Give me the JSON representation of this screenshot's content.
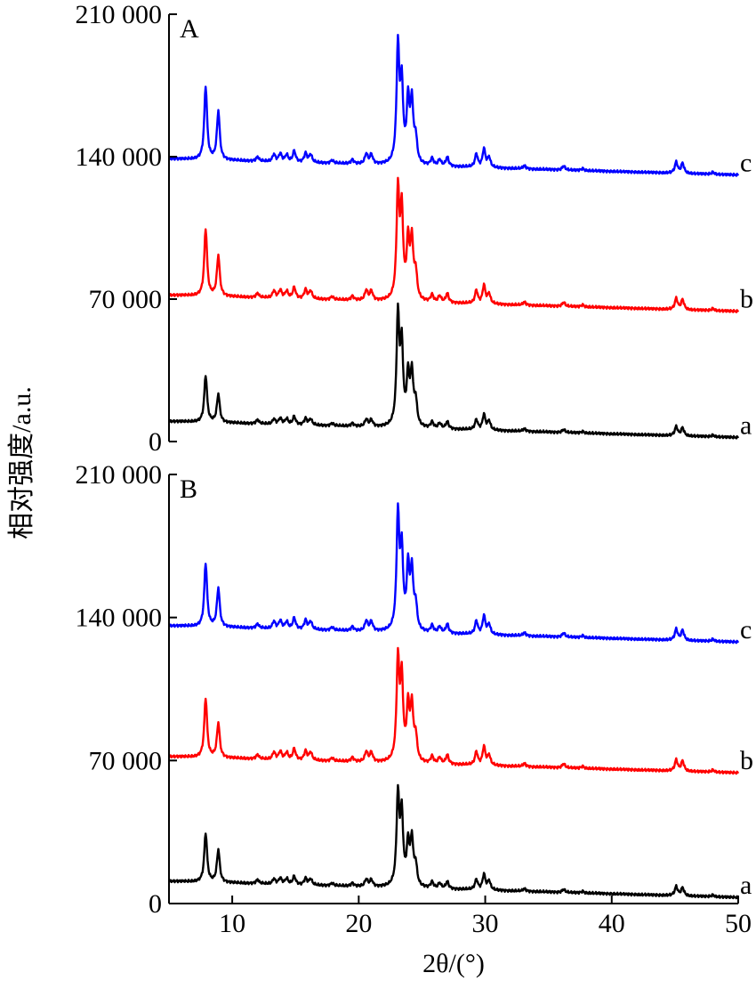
{
  "chart_data": [
    {
      "type": "line",
      "panel_label": "A",
      "ylabel": "相对强度/a.u.",
      "ylim": [
        0,
        210000
      ],
      "y_ticks": [
        0,
        70000,
        140000,
        210000
      ],
      "y_tick_labels": [
        "0",
        "70 000",
        "140 000",
        "210 000"
      ],
      "xlim": [
        5,
        50
      ],
      "series": [
        {
          "name": "a",
          "color": "#000000",
          "baseline": 10000,
          "offset": 0,
          "peaks": [
            [
              7.9,
              23000
            ],
            [
              8.9,
              14000
            ],
            [
              12.0,
              1800
            ],
            [
              13.3,
              2500
            ],
            [
              13.8,
              3000
            ],
            [
              14.3,
              2800
            ],
            [
              14.9,
              4000
            ],
            [
              15.8,
              3200
            ],
            [
              16.2,
              3000
            ],
            [
              17.9,
              1200
            ],
            [
              19.5,
              1500
            ],
            [
              20.6,
              3500
            ],
            [
              21.0,
              3200
            ],
            [
              23.1,
              54000
            ],
            [
              23.4,
              38000
            ],
            [
              23.9,
              24000
            ],
            [
              24.2,
              25000
            ],
            [
              24.5,
              12000
            ],
            [
              25.8,
              3000
            ],
            [
              26.4,
              2500
            ],
            [
              27.0,
              3500
            ],
            [
              29.3,
              5000
            ],
            [
              29.9,
              7500
            ],
            [
              30.3,
              4500
            ],
            [
              33.1,
              1200
            ],
            [
              36.2,
              1500
            ],
            [
              37.7,
              800
            ],
            [
              45.1,
              4500
            ],
            [
              45.6,
              4000
            ],
            [
              48.0,
              800
            ]
          ],
          "series_label": "a"
        },
        {
          "name": "b",
          "color": "#ff0000",
          "baseline": 72000,
          "offset": 0,
          "peaks": [
            [
              7.9,
              33000
            ],
            [
              8.9,
              20000
            ],
            [
              12.0,
              2000
            ],
            [
              13.3,
              3500
            ],
            [
              13.8,
              4000
            ],
            [
              14.3,
              3500
            ],
            [
              14.9,
              5500
            ],
            [
              15.8,
              4500
            ],
            [
              16.2,
              4000
            ],
            [
              17.9,
              1500
            ],
            [
              19.5,
              2000
            ],
            [
              20.6,
              5000
            ],
            [
              21.0,
              4500
            ],
            [
              23.1,
              53000
            ],
            [
              23.4,
              42000
            ],
            [
              23.9,
              28000
            ],
            [
              24.2,
              28000
            ],
            [
              24.5,
              13000
            ],
            [
              25.8,
              3500
            ],
            [
              26.4,
              3000
            ],
            [
              27.0,
              4500
            ],
            [
              29.3,
              6500
            ],
            [
              29.9,
              9000
            ],
            [
              30.3,
              5000
            ],
            [
              33.1,
              1500
            ],
            [
              36.2,
              2000
            ],
            [
              37.7,
              1000
            ],
            [
              45.1,
              5500
            ],
            [
              45.6,
              5000
            ],
            [
              48.0,
              1000
            ]
          ],
          "series_label": "b"
        },
        {
          "name": "c",
          "color": "#0000ff",
          "baseline": 139000,
          "offset": 0,
          "peaks": [
            [
              7.9,
              36000
            ],
            [
              8.9,
              24000
            ],
            [
              12.0,
              2000
            ],
            [
              13.3,
              3500
            ],
            [
              13.8,
              4000
            ],
            [
              14.3,
              3500
            ],
            [
              14.9,
              5500
            ],
            [
              15.8,
              4500
            ],
            [
              16.2,
              4000
            ],
            [
              17.9,
              1500
            ],
            [
              19.5,
              2000
            ],
            [
              20.6,
              5000
            ],
            [
              21.0,
              4500
            ],
            [
              23.1,
              57000
            ],
            [
              23.4,
              37000
            ],
            [
              23.9,
              30000
            ],
            [
              24.2,
              29000
            ],
            [
              24.5,
              12000
            ],
            [
              25.8,
              3500
            ],
            [
              26.4,
              3000
            ],
            [
              27.0,
              4500
            ],
            [
              29.3,
              6500
            ],
            [
              29.9,
              9000
            ],
            [
              30.3,
              5000
            ],
            [
              33.1,
              1500
            ],
            [
              36.2,
              2000
            ],
            [
              37.7,
              1000
            ],
            [
              45.1,
              5500
            ],
            [
              45.6,
              5000
            ],
            [
              48.0,
              1000
            ]
          ],
          "series_label": "c"
        }
      ]
    },
    {
      "type": "line",
      "panel_label": "B",
      "ylim": [
        0,
        210000
      ],
      "y_ticks": [
        0,
        70000,
        140000,
        210000
      ],
      "y_tick_labels": [
        "0",
        "70 000",
        "140 000",
        "210 000"
      ],
      "xlim": [
        5,
        50
      ],
      "x_ticks": [
        10,
        20,
        30,
        40,
        50
      ],
      "x_tick_labels": [
        "10",
        "20",
        "30",
        "40",
        "50"
      ],
      "xlabel": "2θ/(°)",
      "series": [
        {
          "name": "a",
          "color": "#000000",
          "baseline": 11000,
          "peaks": [
            [
              7.9,
              24000
            ],
            [
              8.9,
              16000
            ],
            [
              12.0,
              1800
            ],
            [
              13.3,
              2500
            ],
            [
              13.8,
              3000
            ],
            [
              14.3,
              2800
            ],
            [
              14.9,
              4000
            ],
            [
              15.8,
              3200
            ],
            [
              16.2,
              3000
            ],
            [
              17.9,
              1200
            ],
            [
              19.5,
              1500
            ],
            [
              20.6,
              3500
            ],
            [
              21.0,
              3200
            ],
            [
              23.1,
              44000
            ],
            [
              23.4,
              34000
            ],
            [
              23.9,
              20000
            ],
            [
              24.2,
              22000
            ],
            [
              24.5,
              10000
            ],
            [
              25.8,
              3000
            ],
            [
              26.4,
              2500
            ],
            [
              27.0,
              3500
            ],
            [
              29.3,
              5000
            ],
            [
              29.9,
              7500
            ],
            [
              30.3,
              4500
            ],
            [
              33.1,
              1200
            ],
            [
              36.2,
              1500
            ],
            [
              37.7,
              800
            ],
            [
              45.1,
              4500
            ],
            [
              45.6,
              4000
            ],
            [
              48.0,
              800
            ]
          ],
          "series_label": "a"
        },
        {
          "name": "b",
          "color": "#ff0000",
          "baseline": 72000,
          "peaks": [
            [
              7.9,
              29000
            ],
            [
              8.9,
              17000
            ],
            [
              12.0,
              2000
            ],
            [
              13.3,
              3500
            ],
            [
              13.8,
              4000
            ],
            [
              14.3,
              3500
            ],
            [
              14.9,
              5500
            ],
            [
              15.8,
              4500
            ],
            [
              16.2,
              4000
            ],
            [
              17.9,
              1500
            ],
            [
              19.5,
              2000
            ],
            [
              20.6,
              5000
            ],
            [
              21.0,
              4500
            ],
            [
              23.1,
              49000
            ],
            [
              23.4,
              39000
            ],
            [
              23.9,
              26000
            ],
            [
              24.2,
              26000
            ],
            [
              24.5,
              12000
            ],
            [
              25.8,
              3500
            ],
            [
              26.4,
              3000
            ],
            [
              27.0,
              4500
            ],
            [
              29.3,
              6500
            ],
            [
              29.9,
              9000
            ],
            [
              30.3,
              5000
            ],
            [
              33.1,
              1500
            ],
            [
              36.2,
              2000
            ],
            [
              37.7,
              1000
            ],
            [
              45.1,
              5500
            ],
            [
              45.6,
              5000
            ],
            [
              48.0,
              1000
            ]
          ],
          "series_label": "b"
        },
        {
          "name": "c",
          "color": "#0000ff",
          "baseline": 136000,
          "peaks": [
            [
              7.9,
              31000
            ],
            [
              8.9,
              19000
            ],
            [
              12.0,
              2000
            ],
            [
              13.3,
              3500
            ],
            [
              13.8,
              4000
            ],
            [
              14.3,
              3500
            ],
            [
              14.9,
              5500
            ],
            [
              15.8,
              4500
            ],
            [
              16.2,
              4000
            ],
            [
              17.9,
              1500
            ],
            [
              19.5,
              2000
            ],
            [
              20.6,
              5000
            ],
            [
              21.0,
              4500
            ],
            [
              23.1,
              56000
            ],
            [
              23.4,
              37000
            ],
            [
              23.9,
              30000
            ],
            [
              24.2,
              28000
            ],
            [
              24.5,
              12000
            ],
            [
              25.8,
              3500
            ],
            [
              26.4,
              3000
            ],
            [
              27.0,
              4500
            ],
            [
              29.3,
              6500
            ],
            [
              29.9,
              9000
            ],
            [
              30.3,
              5000
            ],
            [
              33.1,
              1500
            ],
            [
              36.2,
              2000
            ],
            [
              37.7,
              1000
            ],
            [
              45.1,
              5500
            ],
            [
              45.6,
              5000
            ],
            [
              48.0,
              1000
            ]
          ],
          "series_label": "c"
        }
      ]
    }
  ]
}
